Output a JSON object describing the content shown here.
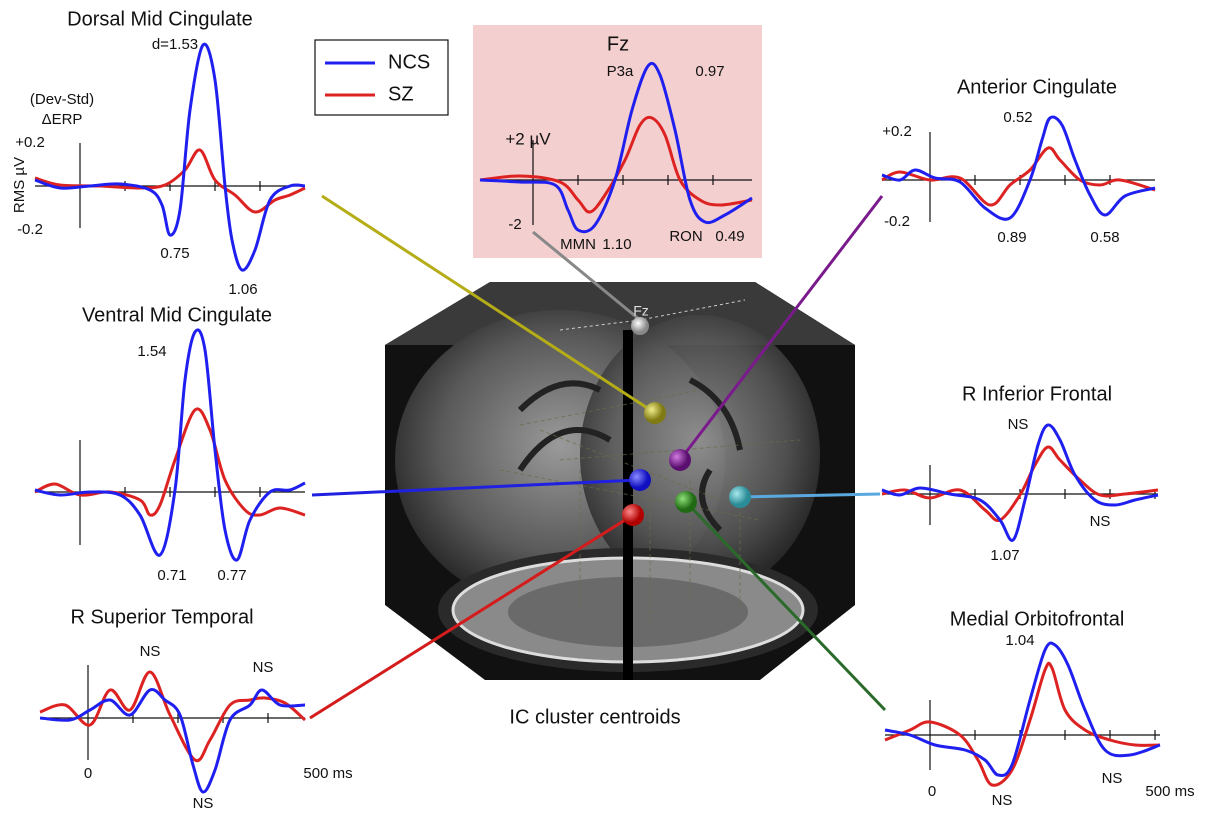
{
  "legend": {
    "items": [
      "NCS",
      "SZ"
    ]
  },
  "panels": [
    {
      "title": "Dorsal Mid Cingulate",
      "labels": [
        "d=1.53",
        "(Dev-Std)",
        "ΔERP",
        "RMS µV",
        "+0.2",
        "-0.2",
        "0.75",
        "1.06"
      ]
    },
    {
      "title": "Fz",
      "labels": [
        "P3a",
        "0.97",
        "+2 µV",
        "-2",
        "MMN",
        "1.10",
        "RON",
        "0.49"
      ]
    },
    {
      "title": "Anterior Cingulate",
      "labels": [
        "0.52",
        "+0.2",
        "-0.2",
        "0.89",
        "0.58"
      ]
    },
    {
      "title": "Ventral Mid Cingulate",
      "labels": [
        "1.54",
        "0.71",
        "0.77"
      ]
    },
    {
      "title": "R Inferior Frontal",
      "labels": [
        "NS",
        "NS",
        "1.07"
      ]
    },
    {
      "title": "R Superior Temporal",
      "labels": [
        "NS",
        "NS",
        "NS",
        "0",
        "500 ms"
      ]
    },
    {
      "title": "Medial Orbitofrontal",
      "labels": [
        "1.04",
        "NS",
        "NS",
        "0",
        "500 ms"
      ]
    }
  ],
  "brain": {
    "caption": "IC cluster centroids",
    "electrode": "Fz"
  }
}
